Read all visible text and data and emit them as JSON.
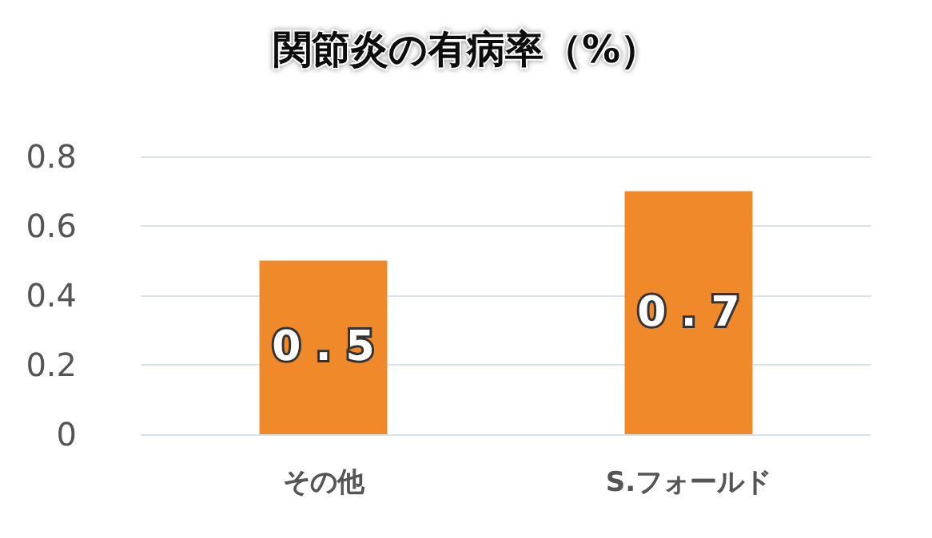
{
  "chart_data": {
    "type": "bar",
    "title": "関節炎の有病率（%）",
    "categories": [
      "その他",
      "S.フォールド"
    ],
    "values": [
      0.5,
      0.7
    ],
    "color": "#f0892a",
    "ylim": [
      0,
      0.8
    ],
    "yticks": [
      0,
      0.2,
      0.4,
      0.6,
      0.8
    ],
    "grid": "y",
    "data_labels": true
  }
}
